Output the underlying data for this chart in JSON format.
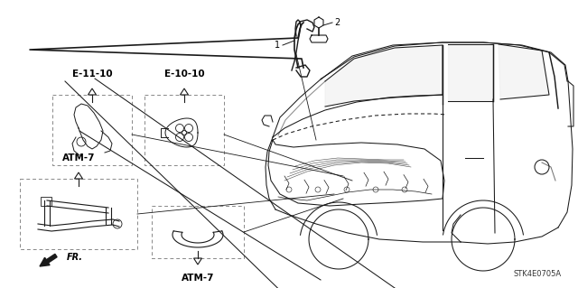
{
  "background_color": "#ffffff",
  "fig_width": 6.4,
  "fig_height": 3.19,
  "part_number_label": "STK4E0705A",
  "labels": {
    "E_11_10": "E-11-10",
    "E_10_10": "E-10-10",
    "ATM_7_upper": "ATM-7",
    "ATM_7_lower": "ATM-7",
    "FR": "FR.",
    "num1": "1",
    "num2": "2"
  },
  "line_color": "#1a1a1a",
  "text_color": "#000000",
  "dashed_box_color": "#888888",
  "arrow_color": "#1a1a1a"
}
